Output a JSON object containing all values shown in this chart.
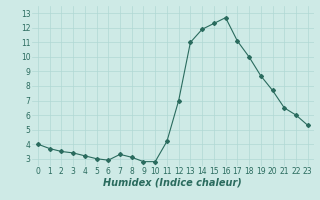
{
  "title": "",
  "xlabel": "Humidex (Indice chaleur)",
  "ylabel": "",
  "x": [
    0,
    1,
    2,
    3,
    4,
    5,
    6,
    7,
    8,
    9,
    10,
    11,
    12,
    13,
    14,
    15,
    16,
    17,
    18,
    19,
    20,
    21,
    22,
    23
  ],
  "y": [
    4.0,
    3.7,
    3.5,
    3.4,
    3.2,
    3.0,
    2.9,
    3.3,
    3.1,
    2.8,
    2.8,
    4.2,
    7.0,
    11.0,
    11.9,
    12.3,
    12.7,
    11.1,
    10.0,
    8.7,
    7.7,
    6.5,
    6.0,
    5.3
  ],
  "line_color": "#2a6b5e",
  "marker": "D",
  "marker_size": 2,
  "bg_color": "#ceeae6",
  "grid_color": "#b0d8d4",
  "ylim": [
    2.5,
    13.5
  ],
  "xlim": [
    -0.5,
    23.5
  ],
  "yticks": [
    3,
    4,
    5,
    6,
    7,
    8,
    9,
    10,
    11,
    12,
    13
  ],
  "xticks": [
    0,
    1,
    2,
    3,
    4,
    5,
    6,
    7,
    8,
    9,
    10,
    11,
    12,
    13,
    14,
    15,
    16,
    17,
    18,
    19,
    20,
    21,
    22,
    23
  ],
  "tick_fontsize": 5.5,
  "xlabel_fontsize": 7
}
